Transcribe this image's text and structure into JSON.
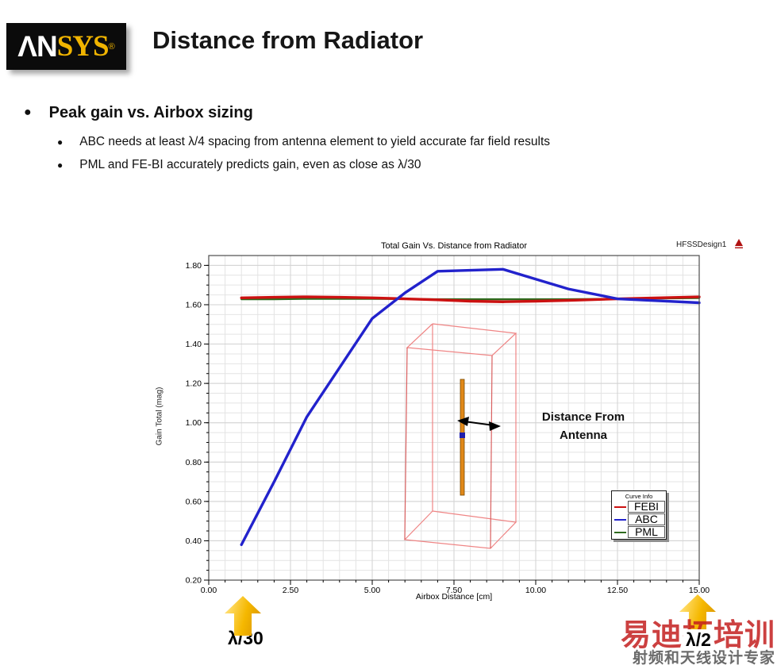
{
  "slide": {
    "logo": {
      "text_white": "ΛN",
      "text_gold": "SYS",
      "registered": "®"
    },
    "title": "Distance from Radiator",
    "bullets": {
      "main": "Peak gain vs. Airbox sizing",
      "sub": [
        "ABC needs at least λ/4 spacing from antenna element to yield accurate far field results",
        "PML and FE-BI accurately predicts gain, even as close as λ/30"
      ]
    }
  },
  "chart_header": {
    "design_name": "HFSSDesign1"
  },
  "chart_data": {
    "type": "line",
    "title": "Total Gain Vs. Distance from Radiator",
    "xlabel": "Airbox Distance [cm]",
    "ylabel": "Gain Total (mag)",
    "xlim": [
      0,
      15
    ],
    "ylim": [
      0.2,
      1.85
    ],
    "grid": true,
    "x_major_ticks": [
      0,
      2.5,
      5,
      7.5,
      10,
      12.5,
      15
    ],
    "x_tick_labels": [
      "0.00",
      "2.50",
      "5.00",
      "7.50",
      "10.00",
      "12.50",
      "15.00"
    ],
    "y_major_ticks": [
      0.2,
      0.4,
      0.6,
      0.8,
      1.0,
      1.2,
      1.4,
      1.6,
      1.8
    ],
    "y_tick_labels": [
      "0.20",
      "0.40",
      "0.60",
      "0.80",
      "1.00",
      "1.20",
      "1.40",
      "1.60",
      "1.80"
    ],
    "x_minor_step": 0.5,
    "y_minor_step": 0.05,
    "legend": {
      "title": "Curve Info",
      "position": "lower right"
    },
    "x": [
      1,
      2,
      3,
      4,
      5,
      6,
      7,
      8,
      9,
      10,
      11,
      12.5,
      15
    ],
    "series": [
      {
        "name": "FEBI",
        "color": "#cc1111",
        "values": [
          1.635,
          1.638,
          1.64,
          1.638,
          1.635,
          1.63,
          1.625,
          1.618,
          1.615,
          1.618,
          1.622,
          1.63,
          1.64
        ]
      },
      {
        "name": "ABC",
        "color": "#2222cc",
        "values": [
          0.38,
          0.7,
          1.03,
          1.28,
          1.53,
          1.66,
          1.77,
          1.775,
          1.78,
          1.73,
          1.68,
          1.63,
          1.61
        ]
      },
      {
        "name": "PML",
        "color": "#2e6b1e",
        "values": [
          1.628,
          1.628,
          1.63,
          1.63,
          1.63,
          1.629,
          1.628,
          1.628,
          1.628,
          1.628,
          1.628,
          1.63,
          1.634
        ]
      }
    ]
  },
  "chart_overlay": {
    "annotation": "Distance From Antenna"
  },
  "callouts": {
    "left": "λ/30",
    "right": "λ/2"
  },
  "watermark": {
    "line1": "易迪拓培训",
    "line2": "射频和天线设计专家",
    "accent_color": "#c41f1f"
  }
}
